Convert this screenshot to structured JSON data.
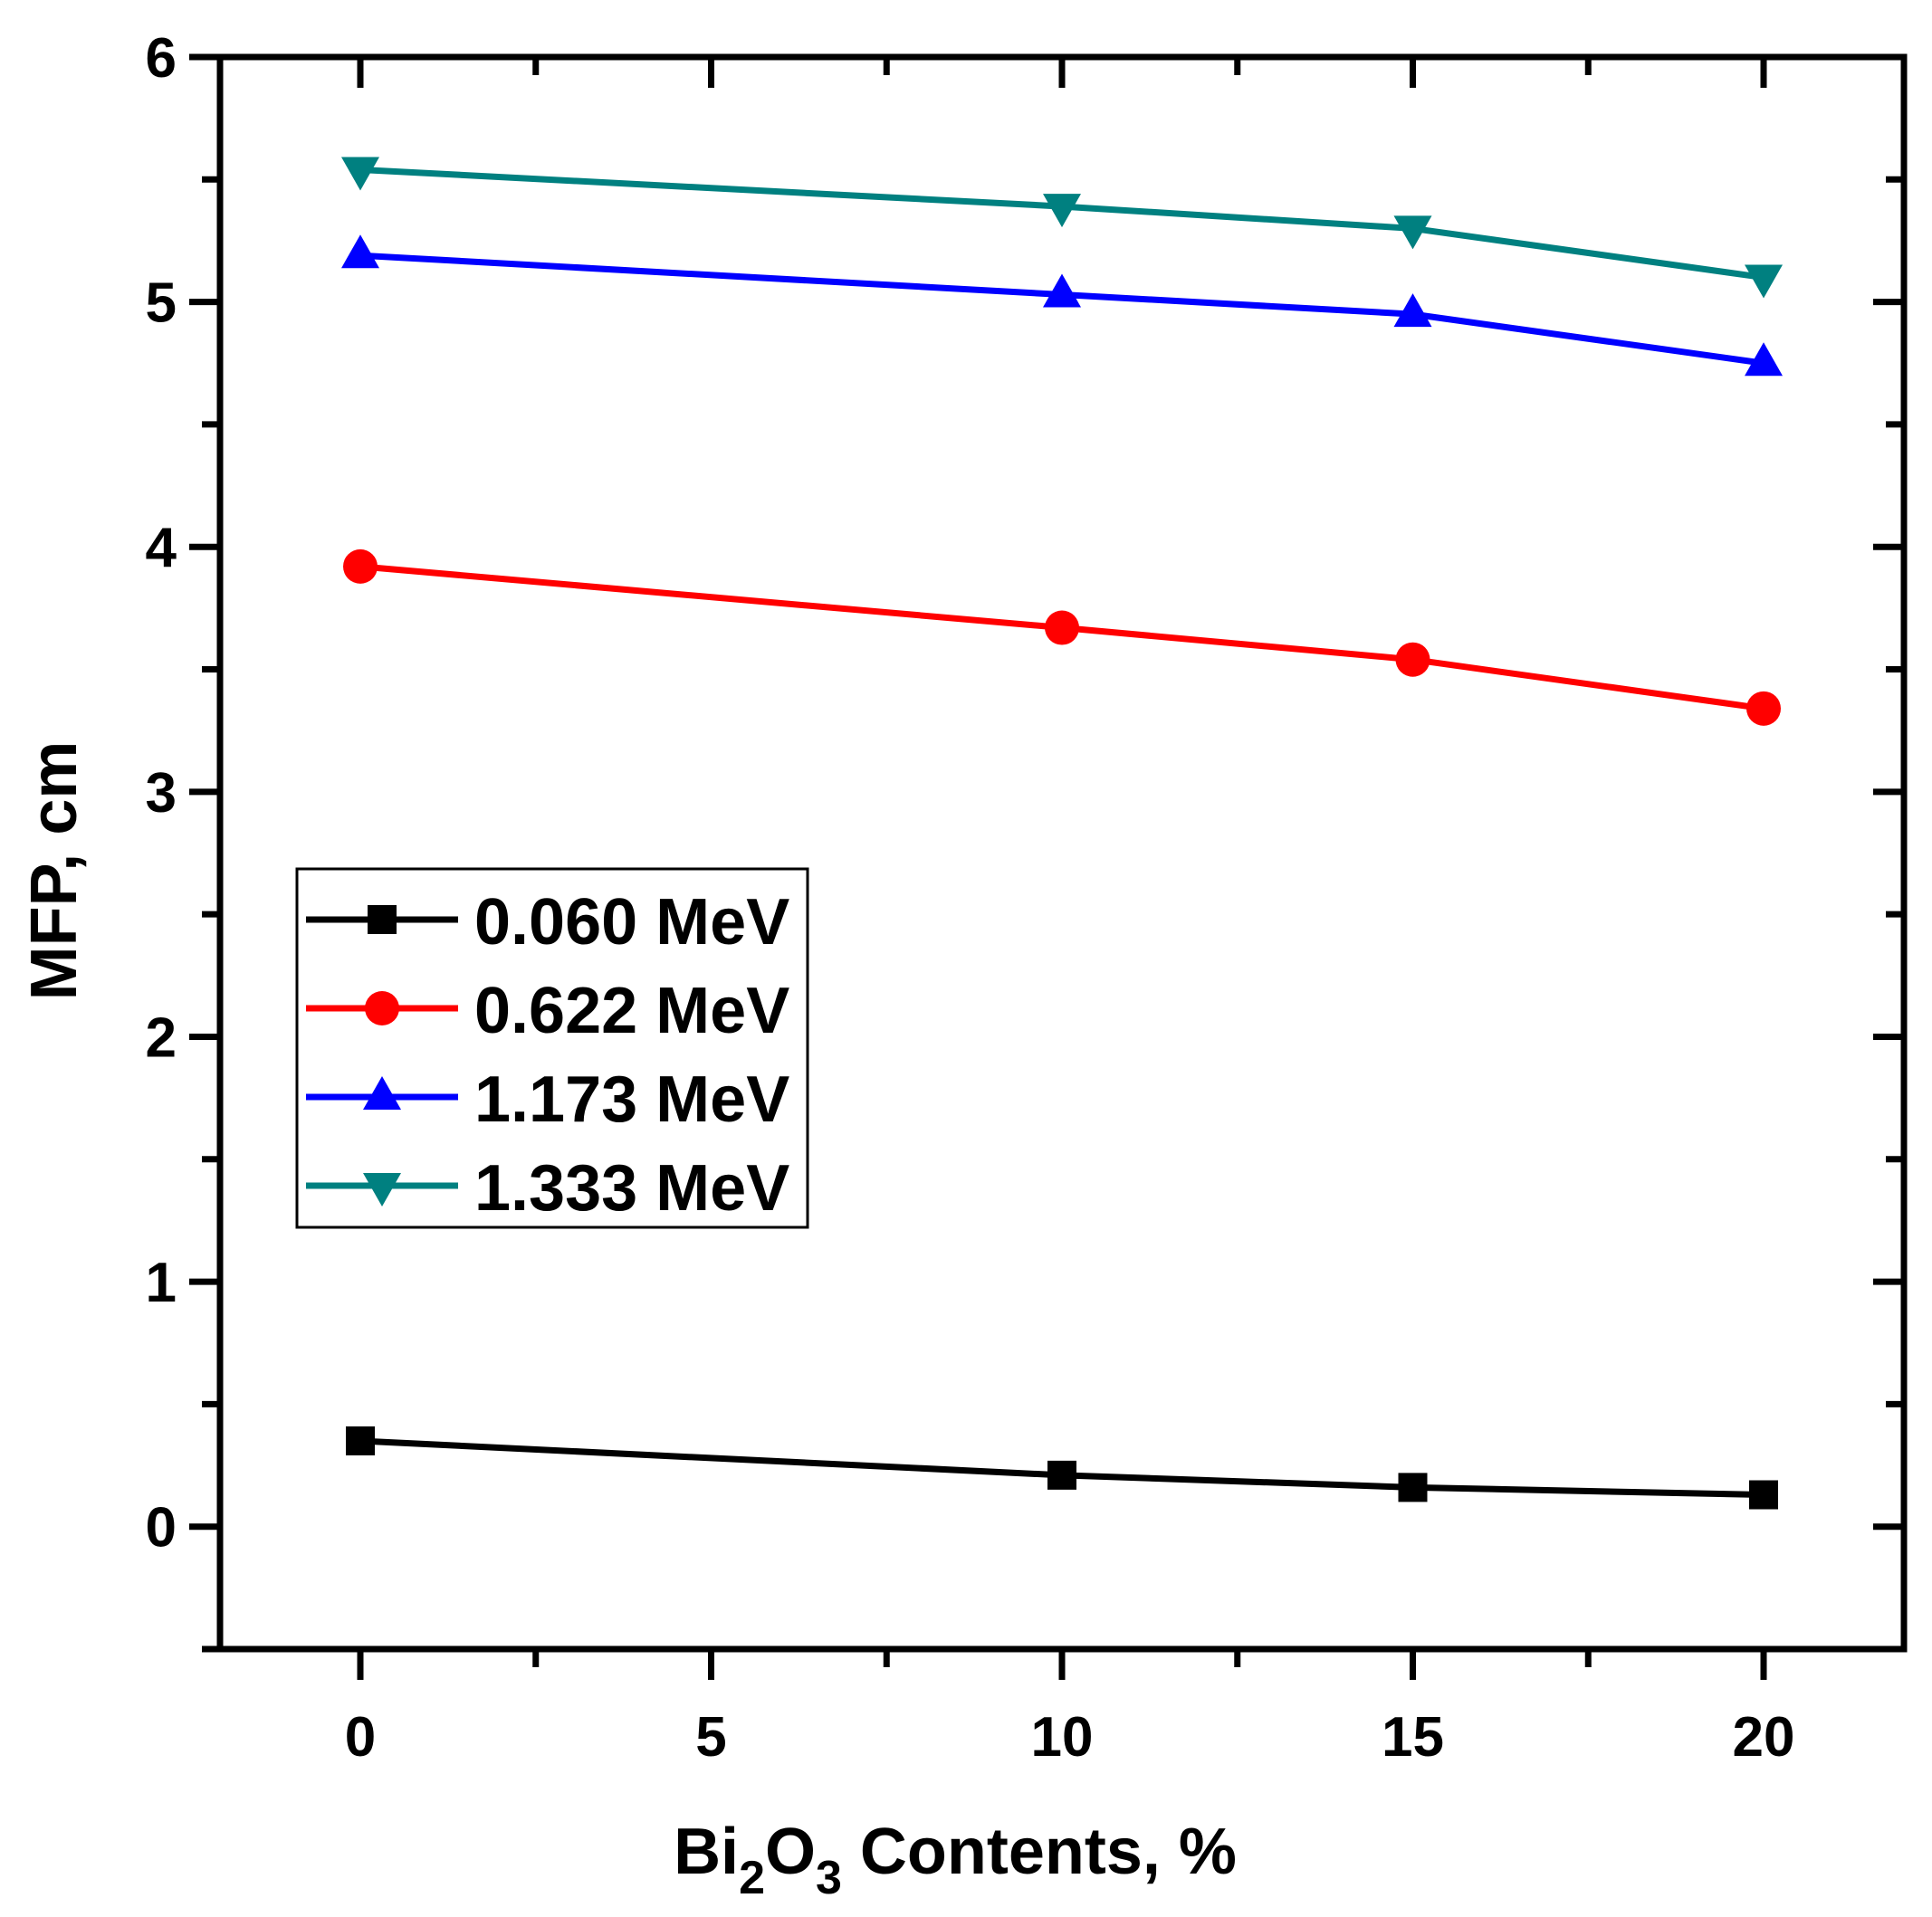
{
  "chart_data": {
    "type": "line",
    "xlabel": {
      "prefix": "Bi",
      "sub1": "2",
      "mid": "O",
      "sub2": "3",
      "suffix": " Contents, %"
    },
    "ylabel": "MFP, cm",
    "xlim": [
      -2,
      22
    ],
    "ylim": [
      -0.5,
      6
    ],
    "x_ticks": [
      0,
      5,
      10,
      15,
      20
    ],
    "x_tick_labels": [
      "0",
      "5",
      "10",
      "15",
      "20"
    ],
    "y_ticks": [
      0,
      1,
      2,
      3,
      4,
      5,
      6
    ],
    "y_tick_labels": [
      "0",
      "1",
      "2",
      "3",
      "4",
      "5",
      "6"
    ],
    "grid": false,
    "legend_position": "center-left",
    "x": [
      0,
      10,
      15,
      20
    ],
    "series": [
      {
        "name": "0.060 MeV",
        "color": "#000000",
        "marker": "square",
        "values": [
          0.35,
          0.21,
          0.16,
          0.13
        ]
      },
      {
        "name": "0.622 MeV",
        "color": "#ff0000",
        "marker": "circle",
        "values": [
          3.92,
          3.67,
          3.54,
          3.34
        ]
      },
      {
        "name": "1.173 MeV",
        "color": "#0000ff",
        "marker": "triangle-up",
        "values": [
          5.19,
          5.03,
          4.95,
          4.75
        ]
      },
      {
        "name": "1.333 MeV",
        "color": "#008080",
        "marker": "triangle-down",
        "values": [
          5.54,
          5.39,
          5.3,
          5.1
        ]
      }
    ]
  }
}
